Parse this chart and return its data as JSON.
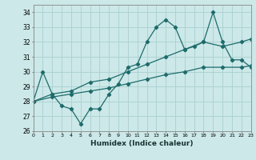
{
  "xlabel": "Humidex (Indice chaleur)",
  "bg_color": "#cce8e8",
  "grid_color": "#aacfcf",
  "line_color": "#1e6b6b",
  "xlim": [
    0,
    23
  ],
  "ylim": [
    26,
    34.5
  ],
  "yticks": [
    26,
    27,
    28,
    29,
    30,
    31,
    32,
    33,
    34
  ],
  "xticks": [
    0,
    1,
    2,
    3,
    4,
    5,
    6,
    7,
    8,
    9,
    10,
    11,
    12,
    13,
    14,
    15,
    16,
    17,
    18,
    19,
    20,
    21,
    22,
    23
  ],
  "line1_x": [
    0,
    1,
    2,
    3,
    4,
    5,
    6,
    7,
    8,
    9,
    10,
    11,
    12,
    13,
    14,
    15,
    16,
    17,
    18,
    19,
    20,
    21,
    22,
    23
  ],
  "line1_y": [
    28.0,
    30.0,
    28.5,
    27.7,
    27.5,
    26.5,
    27.5,
    27.5,
    28.5,
    29.2,
    30.3,
    30.5,
    32.0,
    33.0,
    33.5,
    33.0,
    31.5,
    31.7,
    32.0,
    34.0,
    32.0,
    30.8,
    30.8,
    30.3
  ],
  "line2_x": [
    0,
    2,
    4,
    6,
    8,
    10,
    12,
    14,
    16,
    18,
    20,
    22,
    23
  ],
  "line2_y": [
    28.0,
    28.5,
    28.7,
    29.3,
    29.5,
    30.0,
    30.5,
    31.0,
    31.5,
    32.0,
    31.7,
    32.0,
    32.2
  ],
  "line3_x": [
    0,
    2,
    4,
    6,
    8,
    10,
    12,
    14,
    16,
    18,
    20,
    22,
    23
  ],
  "line3_y": [
    28.0,
    28.3,
    28.5,
    28.7,
    28.9,
    29.2,
    29.5,
    29.8,
    30.0,
    30.3,
    30.3,
    30.3,
    30.4
  ]
}
